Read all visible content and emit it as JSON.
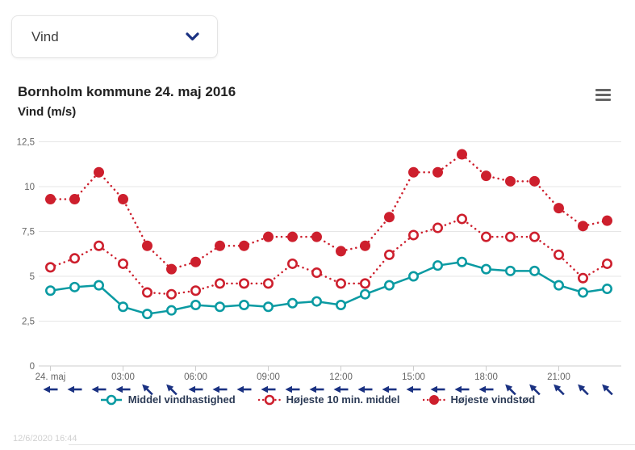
{
  "dropdown": {
    "value": "Vind"
  },
  "chart": {
    "title": "Bornholm kommune 24. maj 2016",
    "subtitle": "Vind (m/s)"
  },
  "footer": {
    "timestamp": "12/6/2020 16:44"
  },
  "colors": {
    "accent_navy": "#1b3282",
    "series_red": "#cd1f2d",
    "series_teal": "#0a9aa2",
    "axis_text": "#666666",
    "gridline": "#e6e6e6"
  },
  "chart_data": {
    "type": "line",
    "title": "Bornholm kommune 24. maj 2016",
    "subtitle": "Vind (m/s)",
    "x": [
      "00:00",
      "01:00",
      "02:00",
      "03:00",
      "04:00",
      "05:00",
      "06:00",
      "07:00",
      "08:00",
      "09:00",
      "10:00",
      "11:00",
      "12:00",
      "13:00",
      "14:00",
      "15:00",
      "16:00",
      "17:00",
      "18:00",
      "19:00",
      "20:00",
      "21:00",
      "22:00",
      "23:00"
    ],
    "x_ticks": [
      {
        "hour": 0,
        "label": "24. maj"
      },
      {
        "hour": 3,
        "label": "03:00"
      },
      {
        "hour": 6,
        "label": "06:00"
      },
      {
        "hour": 9,
        "label": "09:00"
      },
      {
        "hour": 12,
        "label": "12:00"
      },
      {
        "hour": 15,
        "label": "15:00"
      },
      {
        "hour": 18,
        "label": "18:00"
      },
      {
        "hour": 21,
        "label": "21:00"
      }
    ],
    "ylim": [
      0,
      12.5
    ],
    "y_ticks": [
      0,
      2.5,
      5,
      7.5,
      10,
      12.5
    ],
    "y_tick_labels": [
      "0",
      "2,5",
      "5",
      "7,5",
      "10",
      "12,5"
    ],
    "grid": true,
    "legend_position": "bottom",
    "series": [
      {
        "name": "Middel vindhastighed",
        "color": "#0a9aa2",
        "line": "solid",
        "marker": "open-circle",
        "values": [
          4.2,
          4.4,
          4.5,
          3.3,
          2.9,
          3.1,
          3.4,
          3.3,
          3.4,
          3.3,
          3.5,
          3.6,
          3.4,
          4.0,
          4.5,
          5.0,
          5.6,
          5.8,
          5.4,
          5.3,
          5.3,
          4.5,
          4.1,
          4.3
        ]
      },
      {
        "name": "Højeste 10 min. middel",
        "color": "#cd1f2d",
        "line": "dotted",
        "marker": "open-circle",
        "values": [
          5.5,
          6.0,
          6.7,
          5.7,
          4.1,
          4.0,
          4.2,
          4.6,
          4.6,
          4.6,
          5.7,
          5.2,
          4.6,
          4.6,
          6.2,
          7.3,
          7.7,
          8.2,
          7.2,
          7.2,
          7.2,
          6.2,
          4.9,
          5.7
        ]
      },
      {
        "name": "Højeste vindstød",
        "color": "#cd1f2d",
        "line": "dotted",
        "marker": "filled-circle",
        "values": [
          9.3,
          9.3,
          10.8,
          9.3,
          6.7,
          5.4,
          5.8,
          6.7,
          6.7,
          7.2,
          7.2,
          7.2,
          6.4,
          6.7,
          8.3,
          10.8,
          10.8,
          11.8,
          10.6,
          10.3,
          10.3,
          8.8,
          7.8,
          8.1
        ]
      }
    ],
    "wind_arrows": {
      "color": "#1b3282",
      "directions": [
        "W",
        "W",
        "W",
        "W",
        "SW",
        "SW",
        "W",
        "W",
        "W",
        "W",
        "W",
        "W",
        "W",
        "W",
        "W",
        "W",
        "W",
        "W",
        "W",
        "SW",
        "SW",
        "SW",
        "SW",
        "SW"
      ]
    }
  }
}
